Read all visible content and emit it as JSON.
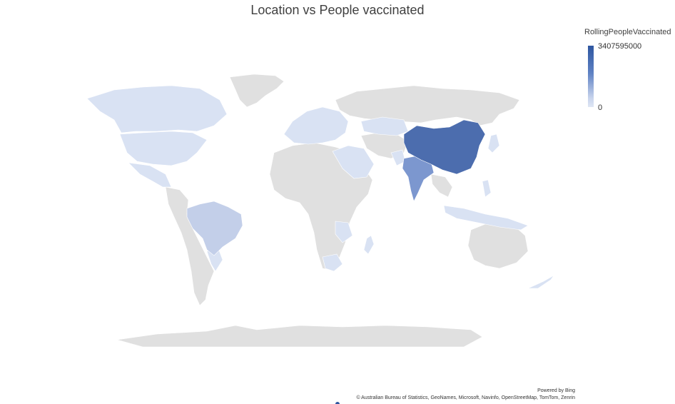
{
  "chart_data": {
    "type": "choropleth-map",
    "title": "Location vs People vaccinated",
    "legend": {
      "title": "RollingPeopleVaccinated",
      "max_label": "3407595000",
      "min_label": "0",
      "max_value": 3407595000,
      "min_value": 0,
      "color_low": "#dfe6f4",
      "color_high": "#2e56a0",
      "no_data_color": "#e0e0e0",
      "placement": "top-right"
    },
    "regions": [
      {
        "name": "China",
        "level": 1.0
      },
      {
        "name": "India",
        "level": 0.55
      },
      {
        "name": "Brazil",
        "level": 0.2
      },
      {
        "name": "United States",
        "level": 0.1
      },
      {
        "name": "Canada",
        "level": 0.05
      },
      {
        "name": "Indonesia",
        "level": 0.1
      },
      {
        "name": "Japan",
        "level": 0.1
      },
      {
        "name": "Mexico",
        "level": 0.05
      },
      {
        "name": "Pakistan",
        "level": 0.1
      },
      {
        "name": "Bangladesh",
        "level": 0.1
      },
      {
        "name": "Europe",
        "level": 0.05
      },
      {
        "name": "Middle East",
        "level": 0.05
      },
      {
        "name": "Southeast Asia",
        "level": 0.08
      },
      {
        "name": "Argentina",
        "level": 0.05
      },
      {
        "name": "South Africa",
        "level": 0.05
      },
      {
        "name": "Kazakhstan",
        "level": 0.03
      }
    ]
  },
  "footer": {
    "powered_by": "Powered by Bing",
    "attribution": "© Australian Bureau of Statistics, GeoNames, Microsoft, Navinfo, OpenStreetMap, TomTom, Zenrin"
  }
}
